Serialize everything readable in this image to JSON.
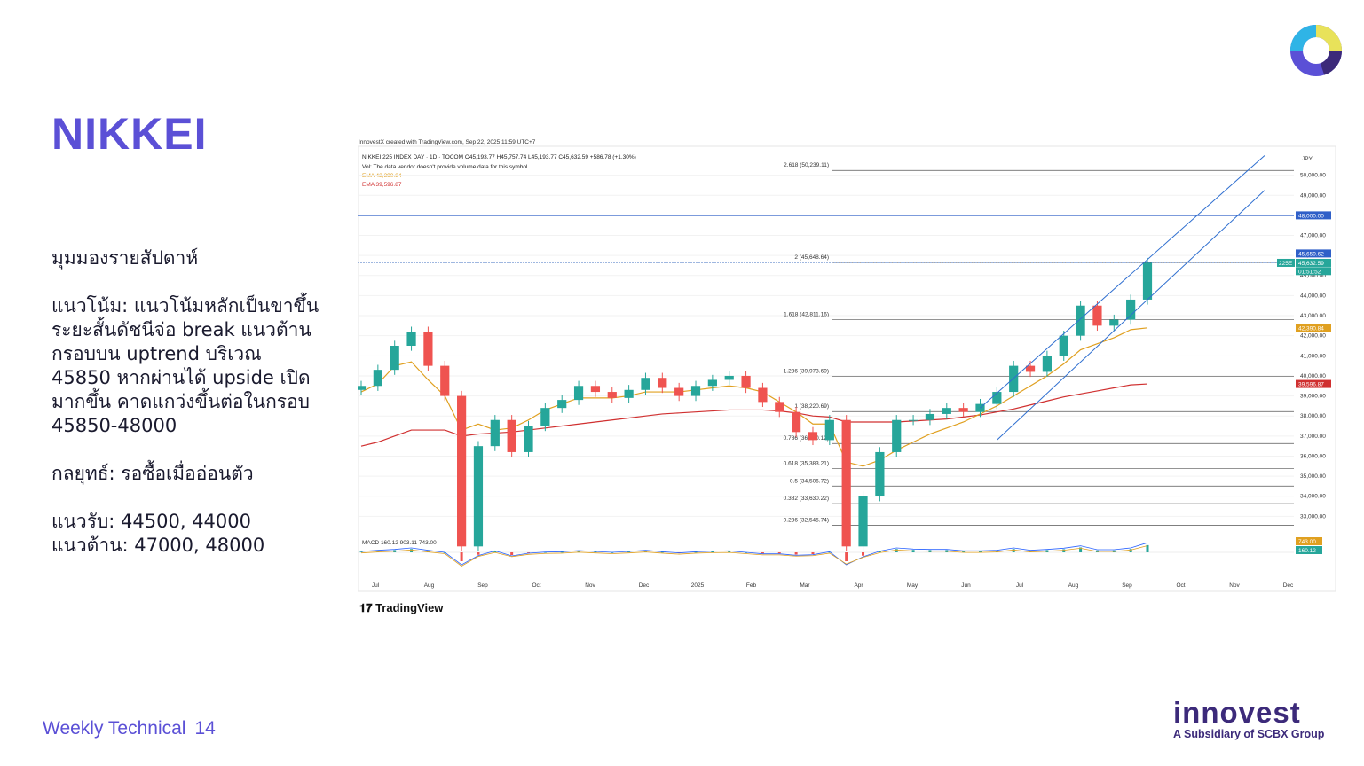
{
  "slide": {
    "title": "NIKKEI",
    "lines": [
      "มุมมองรายสัปดาห์",
      "",
      "แนวโน้ม: แนวโน้มหลักเป็นขาขึ้น",
      "ระยะสั้นดัชนีจ่อ break แนวต้าน",
      "กรอบบน uptrend บริเวณ",
      "45850 หากผ่านได้ upside เปิด",
      "มากขึ้น คาดแกว่งขึ้นต่อในกรอบ",
      "45850-48000",
      "",
      "กลยุทธ์: รอซื้อเมื่ออ่อนตัว",
      "",
      "แนวรับ: 44500, 44000",
      "แนวต้าน: 47000, 48000"
    ],
    "footer_label": "Weekly Technical",
    "page_number": "14",
    "brand_word": "innovest",
    "brand_sub": "A Subsidiary of SCBX Group",
    "accent_color": "#5b50d6"
  },
  "chart_meta": {
    "created_line": "InnovestX created with TradingView.com, Sep 22, 2025 11:59 UTC+7",
    "header": "NIKKEI 225 INDEX DAY · 1D · TOCOM  O45,193.77  H45,757.74  L45,193.77  C45,632.59  +586.78 (+1.30%)",
    "vol_note": "Vol: The data vendor doesn't provide volume data for this symbol.",
    "ema_fast": "EMA  42,390.84",
    "ema_slow": "EMA  39,596.87",
    "currency": "JPY",
    "macd_label": "MACD  160.12  903.11  743.00",
    "watermark": "TradingView",
    "symbol_tag": "225E",
    "price_tag": "45,632.59",
    "time_tag": "01:51:52",
    "last_tag": "45,659.62",
    "ema_fast_tag": "42,390.84",
    "ema_slow_tag": "39,596.87",
    "level_48000_tag": "48,000.00",
    "macd_tag_1": "743.00",
    "macd_tag_2": "160.12"
  },
  "chart_data": {
    "type": "line",
    "title": "NIKKEI 225 INDEX DAY",
    "ylim": [
      32000,
      51000
    ],
    "y_ticks": [
      "50,000.00",
      "49,000.00",
      "48,000.00",
      "47,000.00",
      "46,000.00",
      "45,000.00",
      "44,000.00",
      "43,000.00",
      "42,000.00",
      "41,000.00",
      "40,000.00",
      "39,000.00",
      "38,000.00",
      "37,000.00",
      "36,000.00",
      "35,000.00",
      "34,000.00",
      "33,000.00"
    ],
    "y_tick_values": [
      50000,
      49000,
      48000,
      47000,
      46000,
      45000,
      44000,
      43000,
      42000,
      41000,
      40000,
      39000,
      38000,
      37000,
      36000,
      35000,
      34000,
      33000
    ],
    "x_ticks": [
      "Jul",
      "Aug",
      "Sep",
      "Oct",
      "Nov",
      "Dec",
      "2025",
      "Feb",
      "Mar",
      "Apr",
      "May",
      "Jun",
      "Jul",
      "Aug",
      "Sep",
      "Oct",
      "Nov",
      "Dec"
    ],
    "x_tick_index": [
      0,
      1,
      2,
      3,
      4,
      5,
      6,
      7,
      8,
      9,
      10,
      11,
      12,
      13,
      14,
      15,
      16,
      17
    ],
    "fib_levels": [
      {
        "label": "2.618 (50,239.11)",
        "value": 50239.11
      },
      {
        "label": "2 (45,648.64)",
        "value": 45648.64
      },
      {
        "label": "1.618 (42,811.16)",
        "value": 42811.16
      },
      {
        "label": "1.236 (39,973.69)",
        "value": 39973.69
      },
      {
        "label": "1 (38,220.69)",
        "value": 38220.69
      },
      {
        "label": "0.786 (36,630.12)",
        "value": 36630.12
      },
      {
        "label": "0.618 (35,383.21)",
        "value": 35383.21
      },
      {
        "label": "0.5 (34,506.72)",
        "value": 34506.72
      },
      {
        "label": "0.382 (33,630.22)",
        "value": 33630.22
      },
      {
        "label": "0.236 (32,545.74)",
        "value": 32545.74
      }
    ],
    "horizontal_lines": [
      48000,
      45648.64
    ],
    "series": [
      {
        "name": "NIKKEI 225 INDEX DAY",
        "color": "#26a69a",
        "values": [
          39500,
          40300,
          41500,
          42200,
          40500,
          39000,
          31500,
          36500,
          37800,
          36200,
          37500,
          38400,
          38800,
          39500,
          39200,
          38900,
          39300,
          39900,
          39400,
          39000,
          39500,
          39800,
          40000,
          39400,
          38700,
          38200,
          37200,
          36800,
          37800,
          31500,
          34000,
          36200,
          37800,
          37800,
          38100,
          38400,
          38200,
          38600,
          39200,
          40500,
          40200,
          41000,
          42000,
          43500,
          42500,
          42800,
          43800,
          45632.59
        ]
      },
      {
        "name": "EMA",
        "color": "#e0a020",
        "values": [
          39200,
          39600,
          40500,
          40700,
          39800,
          39000,
          37300,
          37600,
          37300,
          37400,
          37800,
          38300,
          38600,
          38900,
          38900,
          38900,
          39000,
          39200,
          39200,
          39200,
          39300,
          39400,
          39500,
          39400,
          39200,
          38700,
          38200,
          37600,
          37600,
          35700,
          35500,
          35800,
          36300,
          36700,
          37100,
          37400,
          37700,
          38100,
          38500,
          39000,
          39500,
          40000,
          40600,
          41300,
          41600,
          41900,
          42300,
          42390.84
        ]
      },
      {
        "name": "EMA",
        "color": "#d03030",
        "values": [
          36500,
          36700,
          37000,
          37300,
          37300,
          37300,
          37000,
          37100,
          37150,
          37200,
          37300,
          37400,
          37500,
          37600,
          37700,
          37800,
          37900,
          38000,
          38100,
          38150,
          38200,
          38250,
          38300,
          38300,
          38300,
          38250,
          38150,
          38000,
          37950,
          37700,
          37700,
          37700,
          37700,
          37750,
          37800,
          37850,
          37950,
          38050,
          38200,
          38350,
          38550,
          38750,
          38950,
          39100,
          39250,
          39400,
          39550,
          39596.87
        ]
      }
    ],
    "channel": {
      "upper": [
        [
          37,
          38400
        ],
        [
          47,
          45800
        ]
      ],
      "lower": [
        [
          38,
          36800
        ],
        [
          47,
          43800
        ]
      ]
    }
  }
}
